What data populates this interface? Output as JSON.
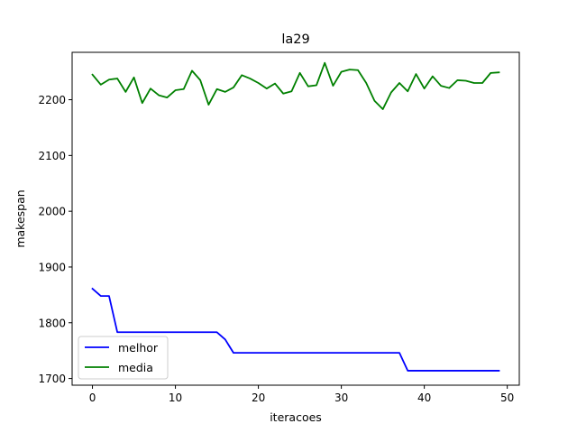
{
  "chart_data": {
    "type": "line",
    "title": "la29",
    "xlabel": "iteracoes",
    "ylabel": "makespan",
    "xlim": [
      -2.45,
      51.45
    ],
    "ylim": [
      1688,
      2285
    ],
    "xticks": [
      0,
      10,
      20,
      30,
      40,
      50
    ],
    "yticks": [
      1700,
      1800,
      1900,
      2000,
      2100,
      2200
    ],
    "grid": false,
    "legend_position": "lower-left",
    "x": [
      0,
      1,
      2,
      3,
      4,
      5,
      6,
      7,
      8,
      9,
      10,
      11,
      12,
      13,
      14,
      15,
      16,
      17,
      18,
      19,
      20,
      21,
      22,
      23,
      24,
      25,
      26,
      27,
      28,
      29,
      30,
      31,
      32,
      33,
      34,
      35,
      36,
      37,
      38,
      39,
      40,
      41,
      42,
      43,
      44,
      45,
      46,
      47,
      48,
      49
    ],
    "series": [
      {
        "name": "melhor",
        "color": "#0000ff",
        "values": [
          1861,
          1848,
          1848,
          1783,
          1783,
          1783,
          1783,
          1783,
          1783,
          1783,
          1783,
          1783,
          1783,
          1783,
          1783,
          1783,
          1770,
          1746,
          1746,
          1746,
          1746,
          1746,
          1746,
          1746,
          1746,
          1746,
          1746,
          1746,
          1746,
          1746,
          1746,
          1746,
          1746,
          1746,
          1746,
          1746,
          1746,
          1746,
          1714,
          1714,
          1714,
          1714,
          1714,
          1714,
          1714,
          1714,
          1714,
          1714,
          1714,
          1714
        ]
      },
      {
        "name": "media",
        "color": "#008000",
        "values": [
          2245,
          2227,
          2236,
          2238,
          2214,
          2240,
          2194,
          2220,
          2208,
          2204,
          2217,
          2219,
          2252,
          2235,
          2191,
          2219,
          2214,
          2222,
          2244,
          2238,
          2230,
          2220,
          2229,
          2211,
          2215,
          2248,
          2224,
          2226,
          2266,
          2225,
          2250,
          2254,
          2253,
          2230,
          2198,
          2183,
          2213,
          2230,
          2215,
          2246,
          2220,
          2242,
          2225,
          2221,
          2235,
          2234,
          2230,
          2230,
          2248,
          2249
        ]
      }
    ]
  }
}
